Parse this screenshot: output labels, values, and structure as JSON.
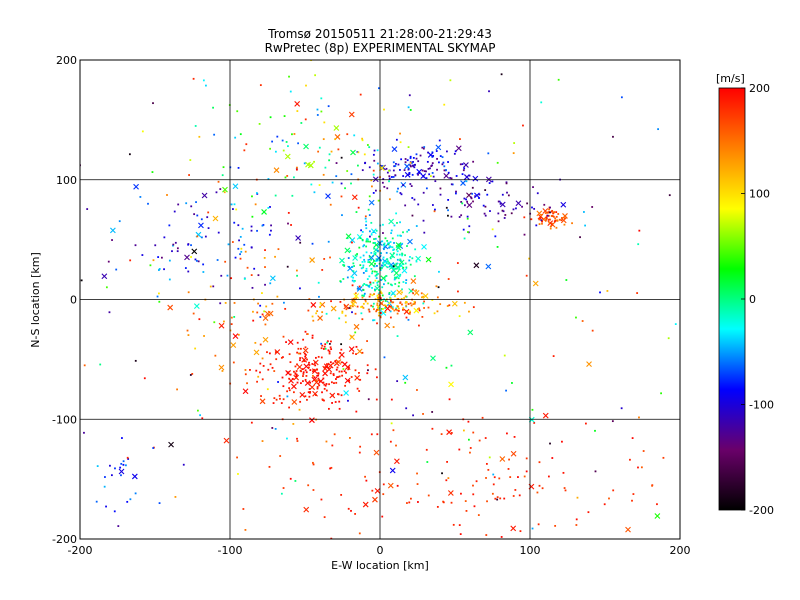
{
  "chart_data": {
    "type": "scatter",
    "title": "Tromsø 20150511 21:28:00-21:29:43",
    "subtitle": "RwPretec (8p) EXPERIMENTAL SKYMAP",
    "xlabel": "E-W location [km]",
    "ylabel": "N-S location [km]",
    "xlim": [
      -200,
      200
    ],
    "ylim": [
      -200,
      200
    ],
    "x_ticks": [
      "-200",
      "-100",
      "0",
      "100",
      "200"
    ],
    "y_ticks": [
      "200",
      "100",
      "0",
      "-100",
      "-200"
    ],
    "grid": true,
    "grid_lines_x": [
      -100,
      0,
      100
    ],
    "grid_lines_y": [
      -100,
      0,
      100
    ],
    "markers": [
      "dot",
      "x"
    ],
    "colorbar": {
      "label": "[m/s]",
      "range": [
        -200,
        200
      ],
      "ticks": [
        "200",
        "100",
        "0",
        "-100",
        "-200"
      ],
      "colors": [
        "#000000",
        "#6a006a",
        "#0000ff",
        "#00ffff",
        "#00ff00",
        "#ffff00",
        "#ff8000",
        "#ff0000"
      ]
    },
    "clusters": [
      {
        "x": 0,
        "y": 30,
        "sx": 12,
        "sy": 18,
        "n": 320,
        "v": [
          -60,
          20
        ]
      },
      {
        "x": -45,
        "y": -60,
        "sx": 18,
        "sy": 14,
        "n": 220,
        "v": [
          180,
          200
        ]
      },
      {
        "x": 25,
        "y": 110,
        "sx": 18,
        "sy": 10,
        "n": 140,
        "v": [
          -140,
          -60
        ]
      },
      {
        "x": 115,
        "y": 68,
        "sx": 5,
        "sy": 4,
        "n": 60,
        "v": [
          140,
          190
        ]
      },
      {
        "x": 5,
        "y": -5,
        "sx": 20,
        "sy": 7,
        "n": 170,
        "v": [
          80,
          200
        ]
      },
      {
        "x": -120,
        "y": 50,
        "sx": 25,
        "sy": 20,
        "n": 90,
        "v": [
          -140,
          -40
        ]
      },
      {
        "x": 70,
        "y": 80,
        "sx": 25,
        "sy": 10,
        "n": 80,
        "v": [
          -160,
          -80
        ]
      },
      {
        "x": -40,
        "y": 120,
        "sx": 40,
        "sy": 30,
        "n": 120,
        "v": [
          -80,
          200
        ]
      },
      {
        "x": 60,
        "y": -150,
        "sx": 70,
        "sy": 30,
        "n": 160,
        "v": [
          160,
          200
        ]
      },
      {
        "x": -80,
        "y": -20,
        "sx": 40,
        "sy": 40,
        "n": 100,
        "v": [
          120,
          200
        ]
      },
      {
        "x": -180,
        "y": -150,
        "sx": 10,
        "sy": 20,
        "n": 25,
        "v": [
          -100,
          -40
        ]
      },
      {
        "x": 0,
        "y": 0,
        "sx": 110,
        "sy": 110,
        "n": 260,
        "v": [
          -200,
          200
        ]
      }
    ]
  }
}
